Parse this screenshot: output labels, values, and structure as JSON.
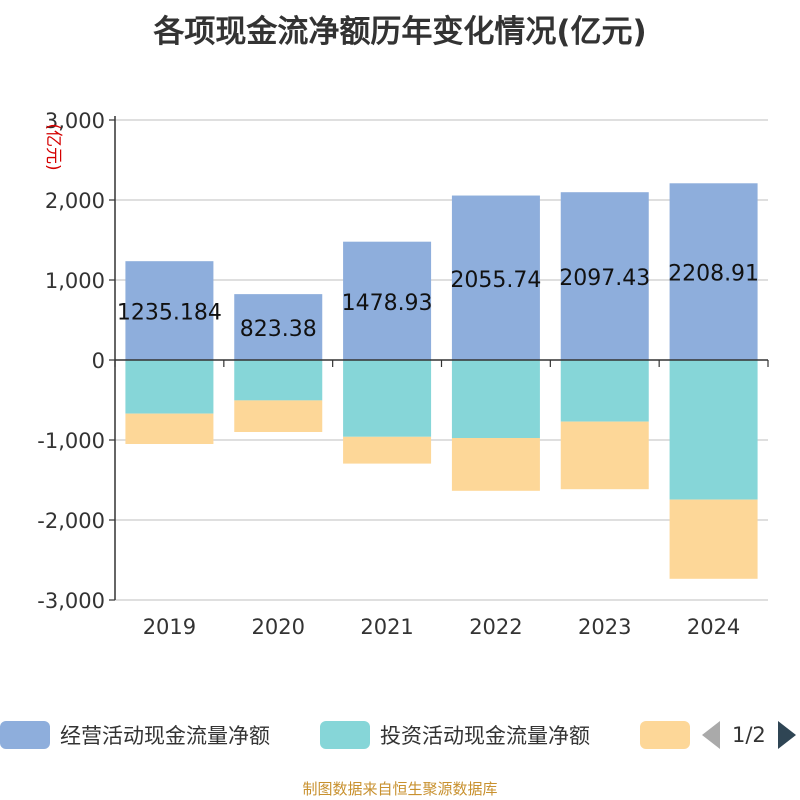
{
  "chart_data": {
    "type": "bar",
    "stacked": true,
    "title": "各项现金流净额历年变化情况(亿元)",
    "ylabel": "(亿元)",
    "xlabel": "",
    "categories": [
      "2019",
      "2020",
      "2021",
      "2022",
      "2023",
      "2024"
    ],
    "ylim": [
      -3000,
      3000
    ],
    "yticks": [
      3000,
      2000,
      1000,
      0,
      -1000,
      -2000,
      -3000
    ],
    "ytick_labels": [
      "3,000",
      "2,000",
      "1,000",
      "0",
      "-1,000",
      "-2,000",
      "-3,000"
    ],
    "grid": true,
    "series": [
      {
        "name": "经营活动现金流量净额",
        "color": "#8eaedc",
        "values": [
          1235.184,
          823.38,
          1478.93,
          2055.74,
          2097.43,
          2208.91
        ],
        "labels": [
          "1235.184",
          "823.38",
          "1478.93",
          "2055.74",
          "2097.43",
          "2208.91"
        ]
      },
      {
        "name": "投资活动现金流量净额",
        "color": "#86d6d8",
        "values": [
          -670,
          -505,
          -960,
          -975,
          -770,
          -1745
        ]
      },
      {
        "name": "",
        "color": "#fdd798",
        "values": [
          -380,
          -395,
          -335,
          -660,
          -845,
          -990
        ]
      }
    ]
  },
  "legend": {
    "page_text": "1/2"
  },
  "source": "制图数据来自恒生聚源数据库"
}
